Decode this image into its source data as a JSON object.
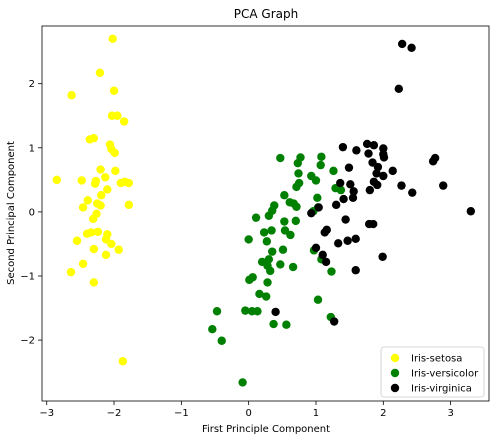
{
  "chart_data": {
    "type": "scatter",
    "title": "PCA Graph",
    "xlabel": "First Principle Component",
    "ylabel": "Second Principal Component",
    "xlim": [
      -3.07,
      3.57
    ],
    "ylim": [
      -2.95,
      2.9
    ],
    "xticks": [
      -3,
      -2,
      -1,
      0,
      1,
      2,
      3
    ],
    "yticks": [
      -2,
      -1,
      0,
      1,
      2
    ],
    "xtick_labels": [
      "−3",
      "−2",
      "−1",
      "0",
      "1",
      "2",
      "3"
    ],
    "ytick_labels": [
      "−2",
      "−1",
      "0",
      "1",
      "2"
    ],
    "legend_position": "lower-right",
    "grid": false,
    "series": [
      {
        "name": "Iris-setosa",
        "color": "#ffff00",
        "points": [
          [
            -2.02,
            2.7
          ],
          [
            -2.21,
            2.17
          ],
          [
            -2.63,
            1.82
          ],
          [
            -2.0,
            1.89
          ],
          [
            -2.03,
            1.5
          ],
          [
            -1.85,
            1.41
          ],
          [
            -1.95,
            1.5
          ],
          [
            -2.3,
            1.15
          ],
          [
            -2.36,
            1.13
          ],
          [
            -2.06,
            1.05
          ],
          [
            -2.04,
            0.98
          ],
          [
            -1.99,
            0.92
          ],
          [
            -2.2,
            0.66
          ],
          [
            -1.98,
            0.64
          ],
          [
            -2.13,
            0.54
          ],
          [
            -2.27,
            0.48
          ],
          [
            -2.28,
            0.44
          ],
          [
            -1.84,
            0.47
          ],
          [
            -1.9,
            0.45
          ],
          [
            -1.78,
            0.45
          ],
          [
            -2.85,
            0.5
          ],
          [
            -2.48,
            0.49
          ],
          [
            -2.1,
            0.35
          ],
          [
            -2.19,
            0.26
          ],
          [
            -2.39,
            0.18
          ],
          [
            -2.25,
            0.13
          ],
          [
            -2.2,
            0.1
          ],
          [
            -1.78,
            0.11
          ],
          [
            -2.46,
            0.07
          ],
          [
            -2.26,
            -0.03
          ],
          [
            -2.31,
            -0.11
          ],
          [
            -2.34,
            -0.32
          ],
          [
            -2.24,
            -0.31
          ],
          [
            -2.4,
            -0.34
          ],
          [
            -2.1,
            -0.35
          ],
          [
            -2.12,
            -0.43
          ],
          [
            -2.55,
            -0.45
          ],
          [
            -2.04,
            -0.5
          ],
          [
            -2.3,
            -0.58
          ],
          [
            -1.93,
            -0.59
          ],
          [
            -2.12,
            -0.67
          ],
          [
            -2.46,
            -0.81
          ],
          [
            -2.64,
            -0.94
          ],
          [
            -2.3,
            -1.1
          ],
          [
            -1.87,
            -2.33
          ]
        ]
      },
      {
        "name": "Iris-versicolor",
        "color": "#008000",
        "points": [
          [
            0.47,
            0.84
          ],
          [
            0.77,
            0.85
          ],
          [
            0.73,
            0.76
          ],
          [
            1.08,
            0.86
          ],
          [
            1.07,
            0.73
          ],
          [
            0.93,
            0.56
          ],
          [
            1.26,
            0.64
          ],
          [
            0.74,
            0.6
          ],
          [
            0.75,
            0.45
          ],
          [
            0.71,
            0.39
          ],
          [
            1.0,
            0.49
          ],
          [
            1.29,
            0.37
          ],
          [
            1.37,
            0.34
          ],
          [
            1.02,
            0.22
          ],
          [
            0.53,
            0.26
          ],
          [
            0.67,
            0.13
          ],
          [
            0.61,
            0.15
          ],
          [
            0.38,
            0.1
          ],
          [
            0.71,
            0.08
          ],
          [
            1.03,
            0.07
          ],
          [
            0.96,
            0.01
          ],
          [
            0.35,
            0.02
          ],
          [
            0.3,
            -0.06
          ],
          [
            0.11,
            -0.09
          ],
          [
            0.53,
            -0.15
          ],
          [
            0.7,
            -0.14
          ],
          [
            0.23,
            -0.32
          ],
          [
            0.34,
            -0.29
          ],
          [
            0.54,
            -0.29
          ],
          [
            0.62,
            -0.36
          ],
          [
            0.0,
            -0.43
          ],
          [
            0.27,
            -0.46
          ],
          [
            0.51,
            -0.59
          ],
          [
            0.35,
            -0.62
          ],
          [
            0.97,
            -0.6
          ],
          [
            1.08,
            -0.74
          ],
          [
            0.3,
            -0.74
          ],
          [
            0.2,
            -0.78
          ],
          [
            0.28,
            -0.84
          ],
          [
            0.47,
            -0.82
          ],
          [
            0.66,
            -0.86
          ],
          [
            1.23,
            -0.93
          ],
          [
            0.32,
            -0.92
          ],
          [
            0.06,
            -1.02
          ],
          [
            0.01,
            -1.06
          ],
          [
            0.28,
            -1.1
          ],
          [
            0.16,
            -1.28
          ],
          [
            0.26,
            -1.32
          ],
          [
            -0.05,
            -1.54
          ],
          [
            0.05,
            -1.55
          ],
          [
            0.13,
            -1.55
          ],
          [
            1.03,
            -1.37
          ],
          [
            -0.47,
            -1.55
          ],
          [
            -0.54,
            -1.83
          ],
          [
            -0.4,
            -2.01
          ],
          [
            0.37,
            -1.75
          ],
          [
            0.56,
            -1.76
          ],
          [
            1.22,
            -1.64
          ],
          [
            -0.09,
            -2.66
          ]
        ]
      },
      {
        "name": "Iris-virginica",
        "color": "#000000",
        "points": [
          [
            2.28,
            2.62
          ],
          [
            2.42,
            2.56
          ],
          [
            2.23,
            1.92
          ],
          [
            1.76,
            1.06
          ],
          [
            1.86,
            1.04
          ],
          [
            1.4,
            1.01
          ],
          [
            2.0,
            0.99
          ],
          [
            1.6,
            0.96
          ],
          [
            2.0,
            0.9
          ],
          [
            2.01,
            0.85
          ],
          [
            2.77,
            0.84
          ],
          [
            2.74,
            0.79
          ],
          [
            1.78,
            0.91
          ],
          [
            1.84,
            0.77
          ],
          [
            1.49,
            0.69
          ],
          [
            1.92,
            0.7
          ],
          [
            2.14,
            0.64
          ],
          [
            1.9,
            0.6
          ],
          [
            2.0,
            0.56
          ],
          [
            1.36,
            0.45
          ],
          [
            1.51,
            0.43
          ],
          [
            1.86,
            0.47
          ],
          [
            2.27,
            0.41
          ],
          [
            1.91,
            0.42
          ],
          [
            1.8,
            0.34
          ],
          [
            2.43,
            0.3
          ],
          [
            2.89,
            0.41
          ],
          [
            1.56,
            0.32
          ],
          [
            1.55,
            0.22
          ],
          [
            1.41,
            0.2
          ],
          [
            1.3,
            0.11
          ],
          [
            1.04,
            0.07
          ],
          [
            0.93,
            -0.02
          ],
          [
            3.3,
            0.01
          ],
          [
            1.44,
            -0.12
          ],
          [
            1.79,
            -0.19
          ],
          [
            1.85,
            -0.19
          ],
          [
            1.16,
            -0.28
          ],
          [
            1.13,
            -0.32
          ],
          [
            1.59,
            -0.42
          ],
          [
            1.47,
            -0.45
          ],
          [
            1.33,
            -0.49
          ],
          [
            1.0,
            -0.56
          ],
          [
            1.1,
            -0.67
          ],
          [
            1.15,
            -0.78
          ],
          [
            1.99,
            -0.7
          ],
          [
            1.59,
            -0.91
          ],
          [
            0.4,
            -1.56
          ],
          [
            1.27,
            -1.71
          ]
        ]
      }
    ]
  }
}
